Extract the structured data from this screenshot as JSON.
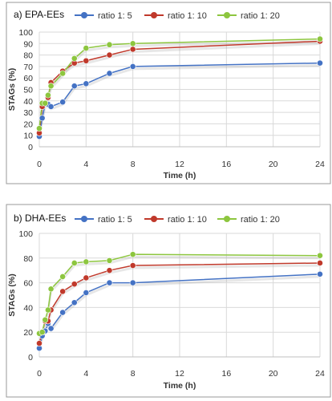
{
  "colors": {
    "ratio_1_5": "#4472c4",
    "ratio_1_10": "#c0392b",
    "ratio_1_20": "#8dc63f"
  },
  "chart_data": [
    {
      "type": "line",
      "title": "a) EPA-EEs",
      "xlabel": "Time (h)",
      "ylabel": "STAGs (%)",
      "xlim": [
        0,
        24
      ],
      "ylim": [
        0,
        100
      ],
      "xticks": [
        0,
        4,
        8,
        12,
        16,
        20,
        24
      ],
      "yticks": [
        0,
        10,
        20,
        30,
        40,
        50,
        60,
        70,
        80,
        90,
        100
      ],
      "grid": true,
      "legend": "top",
      "x": [
        0,
        0.25,
        0.5,
        0.75,
        1,
        2,
        3,
        4,
        6,
        8,
        24
      ],
      "series": [
        {
          "name": "ratio 1: 5",
          "values": [
            9,
            25,
            37,
            37,
            35,
            39,
            53,
            55,
            64,
            70,
            73
          ]
        },
        {
          "name": "ratio 1: 10",
          "values": [
            12,
            35,
            38,
            43,
            56,
            66,
            73,
            75,
            80,
            85,
            92
          ]
        },
        {
          "name": "ratio 1: 20",
          "values": [
            16,
            38,
            38,
            45,
            53,
            64,
            77,
            86,
            89,
            90,
            94
          ]
        }
      ]
    },
    {
      "type": "line",
      "title": "b) DHA-EEs",
      "xlabel": "Time (h)",
      "ylabel": "STAGs (%)",
      "xlim": [
        0,
        24
      ],
      "ylim": [
        0,
        100
      ],
      "xticks": [
        0,
        4,
        8,
        12,
        16,
        20,
        24
      ],
      "yticks": [
        0,
        20,
        40,
        60,
        80,
        100
      ],
      "grid": true,
      "legend": "top",
      "x": [
        0,
        0.25,
        0.5,
        0.75,
        1,
        2,
        3,
        4,
        6,
        8,
        24
      ],
      "series": [
        {
          "name": "ratio 1: 5",
          "values": [
            7,
            17,
            21,
            27,
            23,
            36,
            44,
            52,
            60,
            60,
            67
          ]
        },
        {
          "name": "ratio 1: 10",
          "values": [
            11,
            20,
            29,
            29,
            38,
            53,
            59,
            64,
            70,
            74,
            76
          ]
        },
        {
          "name": "ratio 1: 20",
          "values": [
            19,
            20,
            30,
            38,
            55,
            65,
            76,
            77,
            78,
            83,
            82
          ]
        }
      ]
    }
  ]
}
